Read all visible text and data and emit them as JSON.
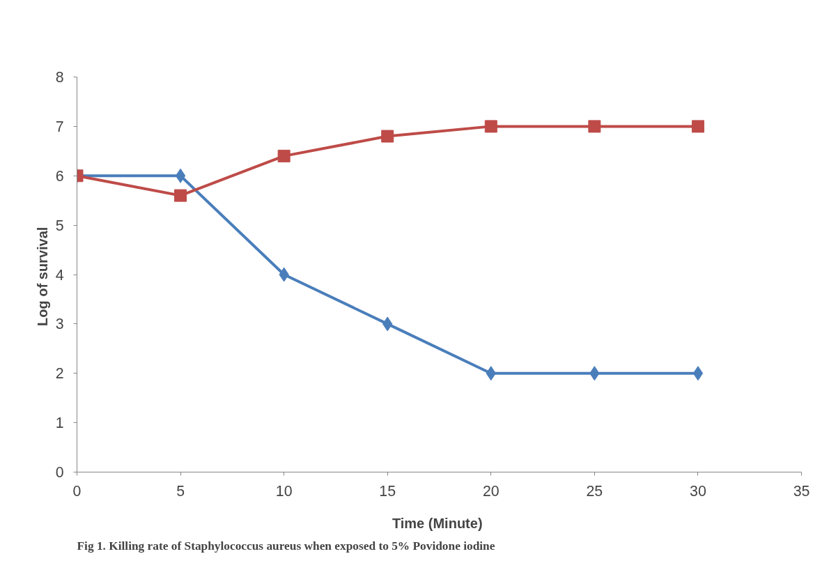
{
  "chart_data": {
    "type": "line",
    "xlabel": "Time  (Minute)",
    "ylabel": "Log of  survival",
    "x": [
      0,
      5,
      10,
      15,
      20,
      25,
      30
    ],
    "series": [
      {
        "color": "#4a7ebb",
        "marker": "diamond",
        "values": [
          6,
          6,
          4,
          3,
          2,
          2,
          2
        ]
      },
      {
        "color": "#be4b48",
        "marker": "square",
        "values": [
          6,
          5.6,
          6.4,
          6.8,
          7,
          7,
          7
        ]
      }
    ],
    "xlim": [
      0,
      35
    ],
    "xticks": [
      0,
      5,
      10,
      15,
      20,
      25,
      30,
      35
    ],
    "ylim": [
      0,
      8
    ],
    "yticks": [
      0,
      1,
      2,
      3,
      4,
      5,
      6,
      7,
      8
    ],
    "grid": false,
    "line_style": "solid",
    "annotations": [
      "Fig 1. Killing rate of Staphylococcus aureus when exposed to 5% Povidone iodine"
    ]
  }
}
